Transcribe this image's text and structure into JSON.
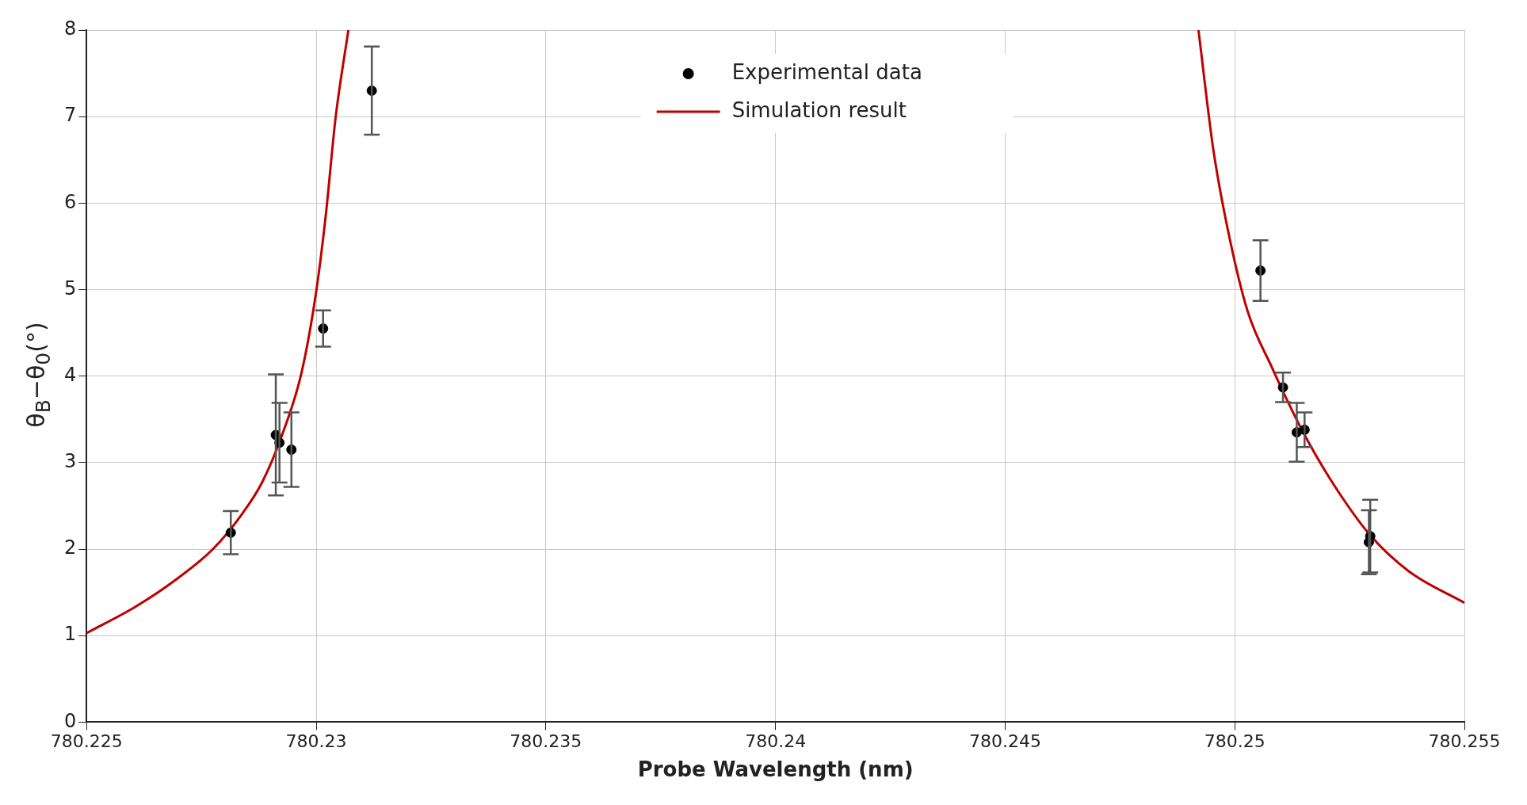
{
  "chart_data": {
    "type": "scatter",
    "xlabel": "Probe Wavelength (nm)",
    "ylabel": "θ$_{B}$−θ$_{0}$(°)",
    "xlim": [
      780.225,
      780.255
    ],
    "xticks": [
      780.225,
      780.23,
      780.235,
      780.24,
      780.245,
      780.25,
      780.255
    ],
    "ylim": [
      0,
      8
    ],
    "yticks": [
      0,
      1,
      2,
      3,
      4,
      5,
      6,
      7,
      8
    ],
    "grid": true,
    "legend": "top",
    "series": [
      {
        "name": "Experimental data",
        "color": "#000000",
        "marker": "circle",
        "x": [
          780.22814,
          780.22912,
          780.2292,
          780.22946,
          780.23015,
          780.23121,
          780.25056,
          780.25105,
          780.25135,
          780.25152,
          780.25295,
          780.25292
        ],
        "values": [
          2.19,
          3.32,
          3.23,
          3.15,
          4.55,
          7.3,
          5.22,
          3.87,
          3.35,
          3.38,
          2.15,
          2.08
        ],
        "errors": [
          0.25,
          0.7,
          0.46,
          0.43,
          0.21,
          0.51,
          0.35,
          0.17,
          0.34,
          0.2,
          0.42,
          0.37
        ]
      },
      {
        "name": "Simulation result",
        "type": "line",
        "color": "#c00000",
        "marker": "none",
        "line_style": "solid",
        "x": [
          780.225,
          780.22605,
          780.2269,
          780.22775,
          780.22839,
          780.22882,
          780.22925,
          780.22968,
          780.23,
          780.23021,
          780.23042,
          780.2307,
          null,
          780.24921,
          780.24953,
          780.24985,
          780.25028,
          780.25081,
          780.25145,
          780.25209,
          780.25295,
          780.2538,
          780.255
        ],
        "values": [
          1.03,
          1.33,
          1.63,
          2.0,
          2.41,
          2.77,
          3.31,
          4.04,
          4.98,
          5.87,
          6.98,
          8,
          null,
          8,
          6.63,
          5.69,
          4.75,
          4.1,
          3.39,
          2.8,
          2.16,
          1.74,
          1.38
        ]
      }
    ]
  }
}
